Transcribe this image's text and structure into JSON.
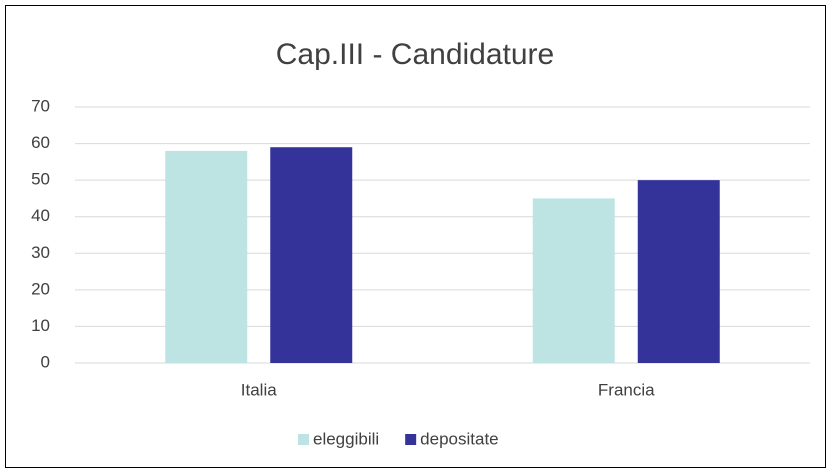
{
  "chart_data": {
    "type": "bar",
    "title": "Cap.III - Candidature",
    "categories": [
      "Italia",
      "Francia"
    ],
    "series": [
      {
        "name": "eleggibili",
        "color": "#bde3e3",
        "values": [
          58,
          45
        ]
      },
      {
        "name": "depositate",
        "color": "#333399",
        "values": [
          59,
          50
        ]
      }
    ],
    "ylim": [
      0,
      70
    ],
    "yticks": [
      0,
      10,
      20,
      30,
      40,
      50,
      60,
      70
    ],
    "grid": true,
    "legend": "bottom"
  }
}
